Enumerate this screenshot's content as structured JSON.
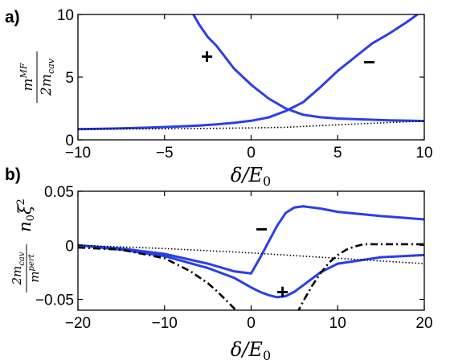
{
  "chart_data": [
    {
      "type": "line",
      "panel_label": "a)",
      "xlabel": "δ/E₀",
      "ylabel": "m^{MF} / 2m_{cav}",
      "xlim": [
        -10,
        10
      ],
      "ylim": [
        0,
        10
      ],
      "xticks": [
        "−10",
        "−5",
        "0",
        "5",
        "10"
      ],
      "yticks": [
        "0",
        "5",
        "10"
      ],
      "grid": false,
      "series": [
        {
          "label": "+",
          "style": "solid",
          "color": "#2a3fe8",
          "x": [
            -10,
            -8,
            -6,
            -4,
            -3,
            -2,
            -1,
            0,
            1,
            2,
            3,
            4,
            5,
            6,
            7,
            8,
            9,
            10
          ],
          "y": [
            0.85,
            0.9,
            0.97,
            1.07,
            1.14,
            1.23,
            1.35,
            1.52,
            1.78,
            2.3,
            3.0,
            4.2,
            5.5,
            6.6,
            7.7,
            8.5,
            9.4,
            10.4
          ]
        },
        {
          "label": "−",
          "style": "solid",
          "color": "#2a3fe8",
          "x": [
            -3.5,
            -3,
            -2.5,
            -2,
            -1,
            0,
            1,
            2,
            3,
            4,
            5,
            6,
            7,
            8,
            9,
            10
          ],
          "y": [
            10.4,
            9.2,
            8.2,
            7.5,
            5.7,
            4.4,
            3.3,
            2.5,
            2.0,
            1.8,
            1.7,
            1.65,
            1.6,
            1.56,
            1.53,
            1.5
          ]
        },
        {
          "label": "",
          "style": "dotted",
          "color": "#000000",
          "x": [
            -10,
            -5,
            0,
            2,
            5,
            10
          ],
          "y": [
            0.88,
            0.88,
            0.95,
            1.0,
            1.2,
            1.5
          ]
        }
      ]
    },
    {
      "type": "line",
      "panel_label": "b)",
      "xlabel": "δ/E₀",
      "ylabel": "(2m_{cav} / m^{pert}) n₀ ξ²",
      "xlim": [
        -20,
        20
      ],
      "ylim": [
        -0.06,
        0.05
      ],
      "xticks": [
        "−20",
        "−10",
        "0",
        "10",
        "20"
      ],
      "yticks": [
        "0.05",
        "0",
        "−0.05"
      ],
      "grid": false,
      "series": [
        {
          "label": "−",
          "style": "solid",
          "color": "#2a3fe8",
          "x": [
            -20,
            -15,
            -10,
            -5,
            -2,
            0,
            1,
            2,
            3,
            4,
            5,
            6,
            8,
            10,
            15,
            20
          ],
          "y": [
            0.0,
            -0.003,
            -0.008,
            -0.017,
            -0.024,
            -0.026,
            -0.012,
            0.003,
            0.018,
            0.03,
            0.035,
            0.036,
            0.034,
            0.031,
            0.027,
            0.024
          ]
        },
        {
          "label": "+",
          "style": "solid",
          "color": "#2a3fe8",
          "x": [
            -20,
            -15,
            -10,
            -5,
            -2,
            0,
            1,
            2,
            3,
            4,
            5,
            6,
            8,
            10,
            15,
            20
          ],
          "y": [
            0.0,
            -0.004,
            -0.01,
            -0.021,
            -0.03,
            -0.039,
            -0.043,
            -0.046,
            -0.048,
            -0.047,
            -0.043,
            -0.037,
            -0.025,
            -0.017,
            -0.011,
            -0.009
          ]
        },
        {
          "label": "",
          "style": "dotted",
          "color": "#000000",
          "x": [
            -20,
            -10,
            0,
            10,
            20
          ],
          "y": [
            0.0,
            -0.003,
            -0.007,
            -0.012,
            -0.017
          ]
        },
        {
          "label": "",
          "style": "dashdot",
          "color": "#000000",
          "x": [
            -20,
            -15,
            -10,
            -7,
            -5,
            -4,
            -3,
            -2,
            -1.5
          ],
          "y": [
            -0.002,
            -0.004,
            -0.012,
            -0.024,
            -0.035,
            -0.042,
            -0.05,
            -0.058,
            -0.063
          ]
        },
        {
          "label": "",
          "style": "dashdot",
          "color": "#000000",
          "x": [
            5.3,
            6,
            7,
            8,
            9,
            10,
            11,
            12,
            13,
            15,
            17,
            20
          ],
          "y": [
            -0.063,
            -0.052,
            -0.038,
            -0.026,
            -0.016,
            -0.009,
            -0.004,
            -0.001,
            0.001,
            0.001,
            0.001,
            0.001
          ]
        }
      ]
    }
  ]
}
